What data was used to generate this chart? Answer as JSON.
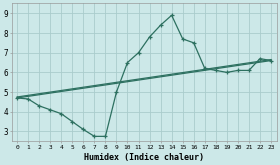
{
  "title": "",
  "xlabel": "Humidex (Indice chaleur)",
  "ylabel": "",
  "bg_color": "#cce8e8",
  "grid_color": "#aacccc",
  "line_color": "#2d7060",
  "xlim": [
    -0.5,
    23.5
  ],
  "ylim": [
    2.5,
    9.5
  ],
  "xtick_labels": [
    "0",
    "1",
    "2",
    "3",
    "4",
    "5",
    "6",
    "7",
    "8",
    "9",
    "10",
    "11",
    "12",
    "13",
    "14",
    "15",
    "16",
    "17",
    "18",
    "19",
    "20",
    "21",
    "22",
    "23"
  ],
  "ytick_labels": [
    "3",
    "4",
    "5",
    "6",
    "7",
    "8",
    "9"
  ],
  "curve1_x": [
    0,
    1,
    2,
    3,
    4,
    5,
    6,
    7,
    8,
    9,
    10,
    11,
    12,
    13,
    14,
    15,
    16,
    17,
    18,
    19,
    20,
    21,
    22,
    23
  ],
  "curve1_y": [
    4.7,
    4.65,
    4.3,
    4.1,
    3.9,
    3.5,
    3.1,
    2.75,
    2.75,
    5.0,
    6.5,
    7.0,
    7.8,
    8.4,
    8.9,
    7.7,
    7.5,
    6.2,
    6.1,
    6.0,
    6.1,
    6.1,
    6.7,
    6.6
  ],
  "line1_x": [
    0,
    23
  ],
  "line1_y": [
    4.7,
    6.6
  ],
  "line2_x": [
    0,
    23
  ],
  "line2_y": [
    4.75,
    6.65
  ]
}
